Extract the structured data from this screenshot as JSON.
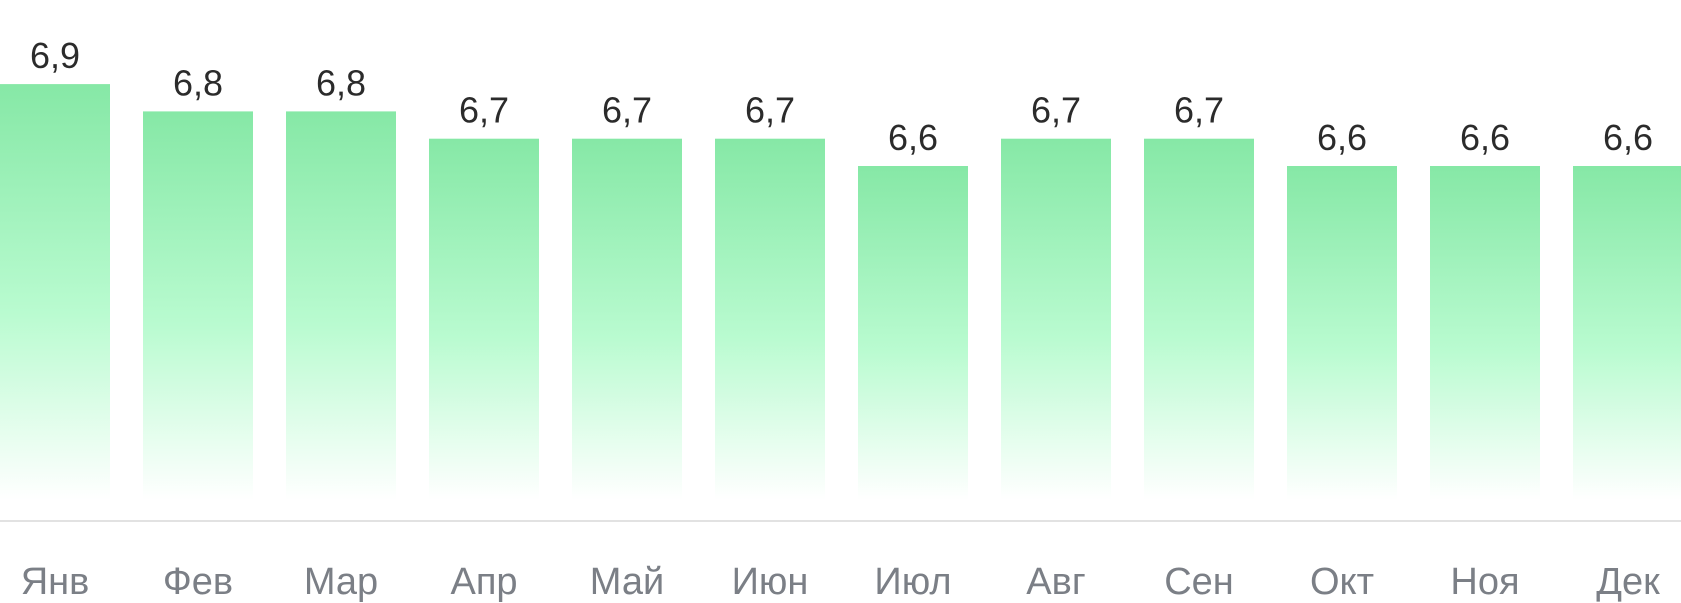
{
  "chart_data": {
    "type": "bar",
    "categories": [
      "Янв",
      "Фев",
      "Мар",
      "Апр",
      "Май",
      "Июн",
      "Июл",
      "Авг",
      "Сен",
      "Окт",
      "Ноя",
      "Дек"
    ],
    "values": [
      6.9,
      6.8,
      6.8,
      6.7,
      6.7,
      6.7,
      6.6,
      6.7,
      6.7,
      6.6,
      6.6,
      6.6
    ],
    "value_labels": [
      "6,9",
      "6,8",
      "6,8",
      "6,7",
      "6,7",
      "6,7",
      "6,6",
      "6,7",
      "6,7",
      "6,6",
      "6,6",
      "6,6"
    ],
    "title": "",
    "xlabel": "",
    "ylabel": "",
    "grid": false,
    "legend": "none",
    "colors": {
      "bar_top": "#86e8a6",
      "bar_bottom": "#ffffff",
      "axis_line": "#e2e2e2",
      "value_text": "#2b2b2b",
      "category_text": "#7b7f86"
    }
  }
}
